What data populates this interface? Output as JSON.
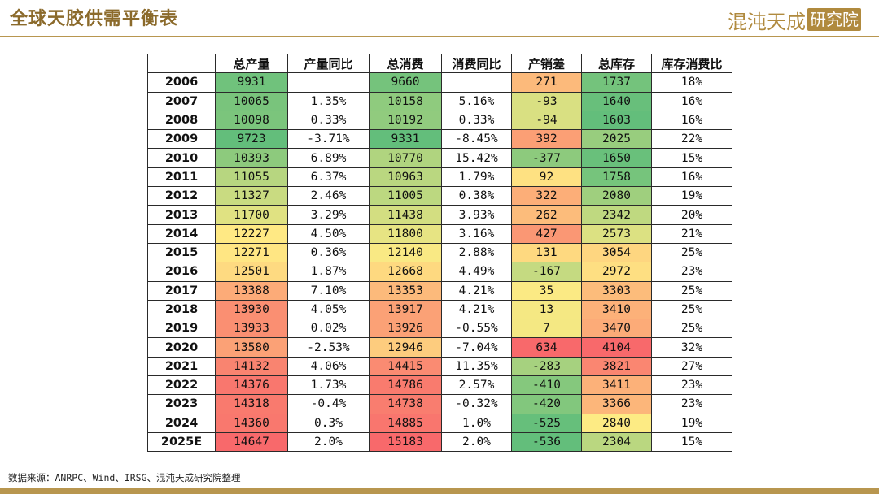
{
  "header": {
    "title": "全球天胶供需平衡表",
    "logo": {
      "text": "混沌天成",
      "seal": "研究院"
    }
  },
  "table": {
    "columns": [
      "",
      "总产量",
      "产量同比",
      "总消费",
      "消费同比",
      "产销差",
      "总库存",
      "库存消费比"
    ],
    "rows": [
      {
        "year": "2006",
        "prod": "9931",
        "prod_yoy": "",
        "cons": "9660",
        "cons_yoy": "",
        "gap": "271",
        "stock": "1737",
        "ratio": "18%"
      },
      {
        "year": "2007",
        "prod": "10065",
        "prod_yoy": "1.35%",
        "cons": "10158",
        "cons_yoy": "5.16%",
        "gap": "-93",
        "stock": "1640",
        "ratio": "16%"
      },
      {
        "year": "2008",
        "prod": "10098",
        "prod_yoy": "0.33%",
        "cons": "10192",
        "cons_yoy": "0.33%",
        "gap": "-94",
        "stock": "1603",
        "ratio": "16%"
      },
      {
        "year": "2009",
        "prod": "9723",
        "prod_yoy": "-3.71%",
        "cons": "9331",
        "cons_yoy": "-8.45%",
        "gap": "392",
        "stock": "2025",
        "ratio": "22%"
      },
      {
        "year": "2010",
        "prod": "10393",
        "prod_yoy": "6.89%",
        "cons": "10770",
        "cons_yoy": "15.42%",
        "gap": "-377",
        "stock": "1650",
        "ratio": "15%"
      },
      {
        "year": "2011",
        "prod": "11055",
        "prod_yoy": "6.37%",
        "cons": "10963",
        "cons_yoy": "1.79%",
        "gap": "92",
        "stock": "1758",
        "ratio": "16%"
      },
      {
        "year": "2012",
        "prod": "11327",
        "prod_yoy": "2.46%",
        "cons": "11005",
        "cons_yoy": "0.38%",
        "gap": "322",
        "stock": "2080",
        "ratio": "19%"
      },
      {
        "year": "2013",
        "prod": "11700",
        "prod_yoy": "3.29%",
        "cons": "11438",
        "cons_yoy": "3.93%",
        "gap": "262",
        "stock": "2342",
        "ratio": "20%"
      },
      {
        "year": "2014",
        "prod": "12227",
        "prod_yoy": "4.50%",
        "cons": "11800",
        "cons_yoy": "3.16%",
        "gap": "427",
        "stock": "2573",
        "ratio": "21%"
      },
      {
        "year": "2015",
        "prod": "12271",
        "prod_yoy": "0.36%",
        "cons": "12140",
        "cons_yoy": "2.88%",
        "gap": "131",
        "stock": "3054",
        "ratio": "25%"
      },
      {
        "year": "2016",
        "prod": "12501",
        "prod_yoy": "1.87%",
        "cons": "12668",
        "cons_yoy": "4.49%",
        "gap": "-167",
        "stock": "2972",
        "ratio": "23%"
      },
      {
        "year": "2017",
        "prod": "13388",
        "prod_yoy": "7.10%",
        "cons": "13353",
        "cons_yoy": "4.21%",
        "gap": "35",
        "stock": "3303",
        "ratio": "25%"
      },
      {
        "year": "2018",
        "prod": "13930",
        "prod_yoy": "4.05%",
        "cons": "13917",
        "cons_yoy": "4.21%",
        "gap": "13",
        "stock": "3410",
        "ratio": "25%"
      },
      {
        "year": "2019",
        "prod": "13933",
        "prod_yoy": "0.02%",
        "cons": "13926",
        "cons_yoy": "-0.55%",
        "gap": "7",
        "stock": "3470",
        "ratio": "25%"
      },
      {
        "year": "2020",
        "prod": "13580",
        "prod_yoy": "-2.53%",
        "cons": "12946",
        "cons_yoy": "-7.04%",
        "gap": "634",
        "stock": "4104",
        "ratio": "32%"
      },
      {
        "year": "2021",
        "prod": "14132",
        "prod_yoy": "4.06%",
        "cons": "14415",
        "cons_yoy": "11.35%",
        "gap": "-283",
        "stock": "3821",
        "ratio": "27%"
      },
      {
        "year": "2022",
        "prod": "14376",
        "prod_yoy": "1.73%",
        "cons": "14786",
        "cons_yoy": "2.57%",
        "gap": "-410",
        "stock": "3411",
        "ratio": "23%"
      },
      {
        "year": "2023",
        "prod": "14318",
        "prod_yoy": "-0.4%",
        "cons": "14738",
        "cons_yoy": "-0.32%",
        "gap": "-420",
        "stock": "3366",
        "ratio": "23%"
      },
      {
        "year": "2024",
        "prod": "14360",
        "prod_yoy": "0.3%",
        "cons": "14885",
        "cons_yoy": "1.0%",
        "gap": "-525",
        "stock": "2840",
        "ratio": "19%"
      },
      {
        "year": "2025E",
        "prod": "14647",
        "prod_yoy": "2.0%",
        "cons": "15183",
        "cons_yoy": "2.0%",
        "gap": "-536",
        "stock": "2304",
        "ratio": "15%"
      }
    ]
  },
  "heatmap_colors": {
    "low": "#63be7b",
    "mid": "#ffeb84",
    "high": "#f8696b"
  },
  "footer": {
    "source": "数据来源：ANRPC、Wind、IRSG、混沌天成研究院整理"
  }
}
